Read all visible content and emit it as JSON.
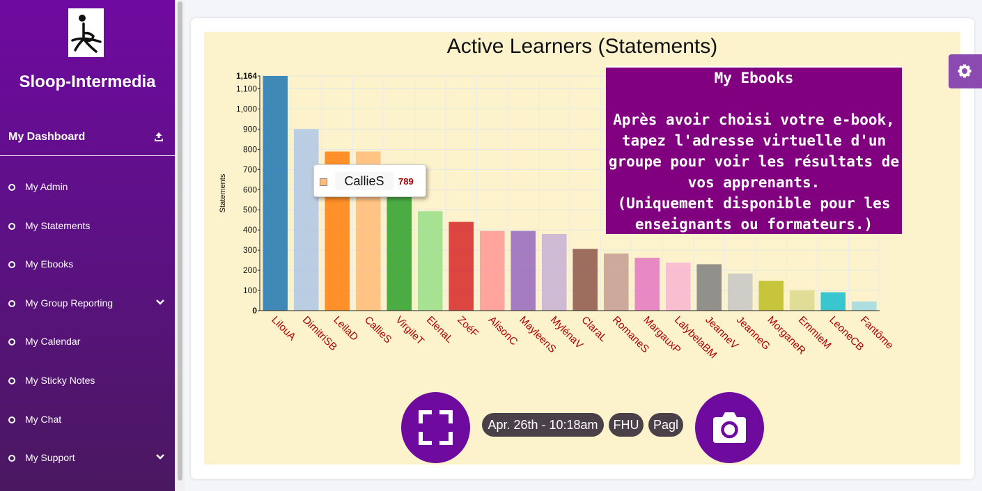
{
  "sidebar": {
    "brand": "Sloop-Intermedia",
    "dashboard_label": "My Dashboard",
    "items": [
      {
        "label": "My Admin",
        "has_chevron": false
      },
      {
        "label": "My Statements",
        "has_chevron": false
      },
      {
        "label": "My Ebooks",
        "has_chevron": false
      },
      {
        "label": "My Group Reporting",
        "has_chevron": true
      },
      {
        "label": "My Calendar",
        "has_chevron": false
      },
      {
        "label": "My Sticky Notes",
        "has_chevron": false
      },
      {
        "label": "My Chat",
        "has_chevron": false
      },
      {
        "label": "My Support",
        "has_chevron": true
      }
    ]
  },
  "ebook_notice": {
    "title": "My Ebooks",
    "lines": [
      "Après avoir choisi votre e-book,",
      "tapez l'adresse virtuelle d'un",
      "groupe pour voir les résultats de",
      "vos apprenants.",
      "(Uniquement disponible pour les",
      "enseignants ou formateurs.)"
    ]
  },
  "tooltip": {
    "name": "CallieS",
    "value": "789"
  },
  "footer": {
    "timestamp": "Apr. 26th - 10:18am",
    "tag1": "FHU",
    "tag2": "Pagl"
  },
  "colors": {
    "accent": "#6f0a9e",
    "panel_bg": "#fcf2cb",
    "notice_bg": "#800080",
    "xlabel": "#b00000"
  },
  "chart_data": {
    "type": "bar",
    "title": "Active Learners (Statements)",
    "ylabel": "Statements",
    "ylim": [
      0,
      1164
    ],
    "yticks": [
      0,
      100,
      200,
      300,
      400,
      500,
      600,
      700,
      800,
      900,
      1000,
      1100,
      1164
    ],
    "ytick_labels": [
      "0",
      "100",
      "200",
      "300",
      "400",
      "500",
      "600",
      "700",
      "800",
      "900",
      "1,000",
      "1,100",
      "1,164"
    ],
    "grid": true,
    "categories": [
      "LilouA",
      "DimitriSB",
      "LeilaD",
      "CallieS",
      "VirgileT",
      "ElenaL",
      "ZoéF",
      "AlisonC",
      "MayleenS",
      "MylénaV",
      "ClaraL",
      "RomaneS",
      "MargauxP",
      "LalybelaBM",
      "JeanneV",
      "JeanneG",
      "MorganeR",
      "EmmieM",
      "LeoneCB",
      "Fantôme"
    ],
    "values": [
      1164,
      900,
      789,
      789,
      580,
      493,
      440,
      395,
      395,
      380,
      306,
      283,
      262,
      238,
      230,
      184,
      148,
      101,
      91,
      45
    ],
    "bar_colors": [
      "#1f77b4",
      "#aec7e8",
      "#ff7f0e",
      "#ffbb78",
      "#2ca02c",
      "#98df8a",
      "#d62728",
      "#ff9896",
      "#9467bd",
      "#c5b0d5",
      "#8c564b",
      "#c49c94",
      "#e377c2",
      "#f7b6d2",
      "#7f7f7f",
      "#c7c7c7",
      "#bcbd22",
      "#dbdb8d",
      "#17becf",
      "#9edae5"
    ]
  }
}
